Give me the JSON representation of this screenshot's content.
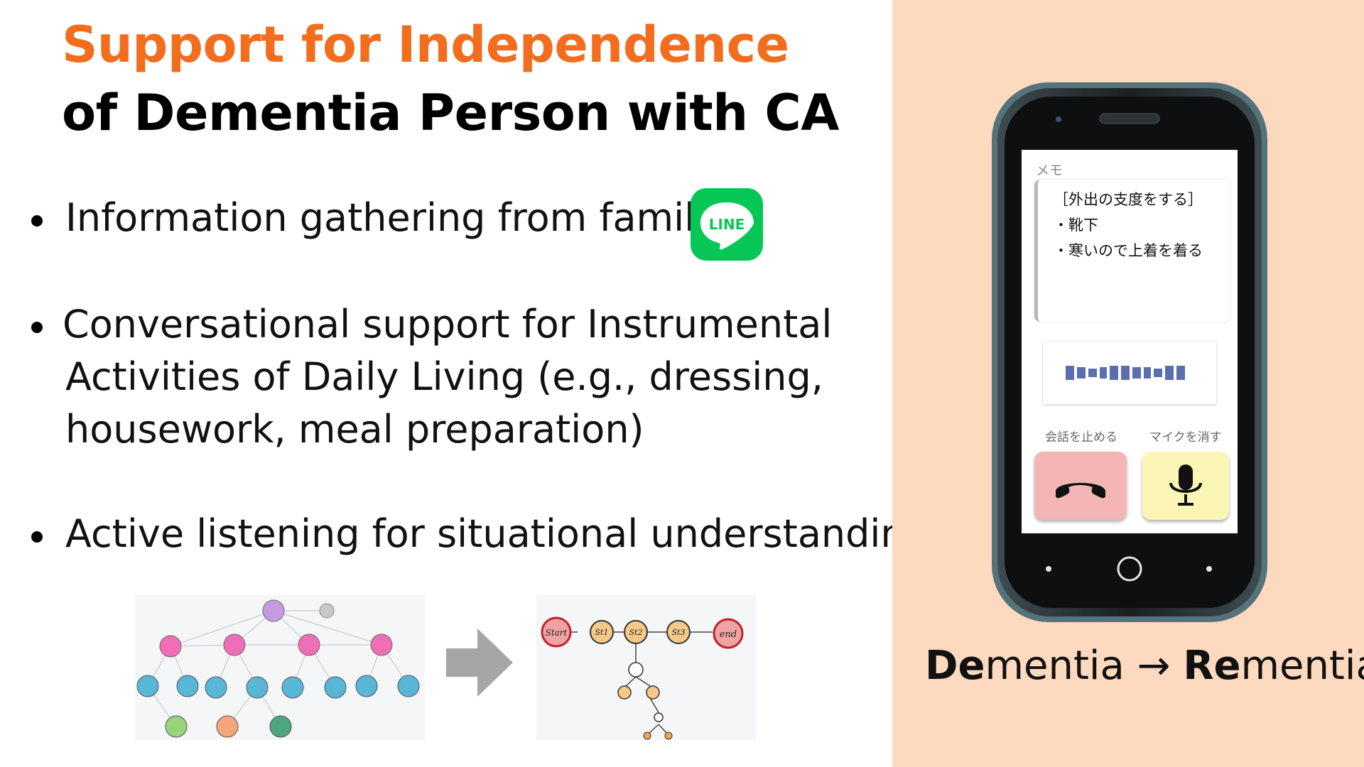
{
  "title": {
    "line1": "Support for Independence",
    "line2": "of Dementia Person with CA"
  },
  "bullets": [
    {
      "text": "Information gathering from family"
    },
    {
      "lines": [
        " Conversational support for Instrumental",
        "Activities of Daily Living (e.g., dressing,",
        "housework, meal preparation)"
      ]
    },
    {
      "text": " Active listening for situational understanding"
    }
  ],
  "line_logo": {
    "label": "LINE",
    "color": "#06c755"
  },
  "phone": {
    "memo_label": "メモ",
    "memo_lines": [
      "［外出の支度をする］",
      "・靴下",
      "・寒いので上着を着る"
    ],
    "stop_label": "会話を止める",
    "mic_label": "マイクを消す"
  },
  "graph_states": {
    "start": "Start",
    "st1": "St1",
    "st2": "St2",
    "st3": "St3",
    "end": "end"
  },
  "tagline": {
    "a_bold": "De",
    "a_rest": "mentia",
    "arrow": " → ",
    "b_bold": "Re",
    "b_rest": "mentia"
  },
  "colors": {
    "title_accent": "#f36d1e",
    "right_panel": "#fdd9bf",
    "end_button": "#f3b6b5",
    "mic_button": "#fbf6b6"
  }
}
